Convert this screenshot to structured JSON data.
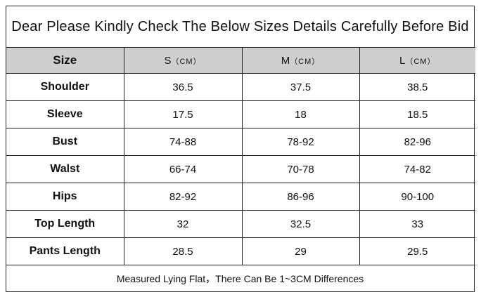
{
  "title": "Dear Please Kindly Check The Below Sizes Details Carefully Before Bid",
  "table": {
    "header": {
      "first": "Size",
      "columns": [
        {
          "size": "S",
          "unit": "（CM）"
        },
        {
          "size": "M",
          "unit": "（CM）"
        },
        {
          "size": "L",
          "unit": "（CM）"
        }
      ]
    },
    "rows": [
      {
        "label": "Shoulder",
        "values": [
          "36.5",
          "37.5",
          "38.5"
        ]
      },
      {
        "label": "Sleeve",
        "values": [
          "17.5",
          "18",
          "18.5"
        ]
      },
      {
        "label": "Bust",
        "values": [
          "74-88",
          "78-92",
          "82-96"
        ]
      },
      {
        "label": "Walst",
        "values": [
          "66-74",
          "70-78",
          "74-82"
        ]
      },
      {
        "label": "Hips",
        "values": [
          "82-92",
          "86-96",
          "90-100"
        ]
      },
      {
        "label": "Top Length",
        "values": [
          "32",
          "32.5",
          "33"
        ]
      },
      {
        "label": "Pants Length",
        "values": [
          "28.5",
          "29",
          "29.5"
        ]
      }
    ]
  },
  "footer": "Measured Lying Flat，There Can Be 1~3CM Differences",
  "colors": {
    "header_background": "#cfcfcf",
    "border": "#222222"
  }
}
